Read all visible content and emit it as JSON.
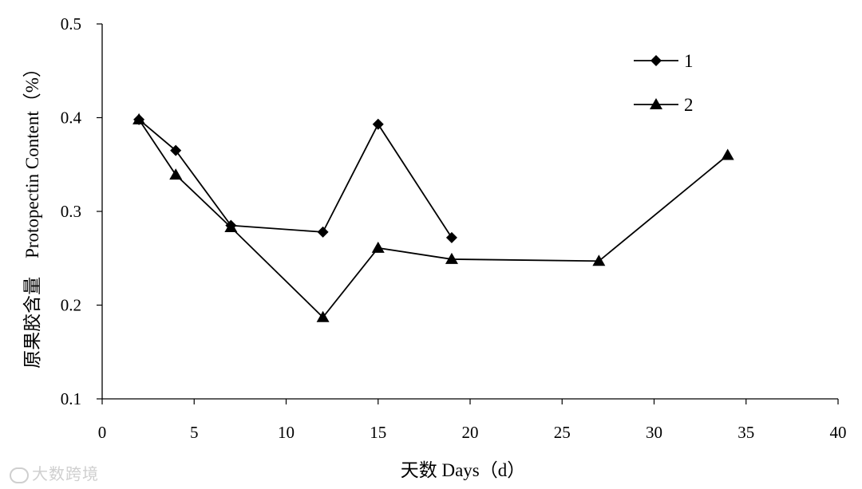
{
  "chart_data": {
    "type": "line",
    "xlabel": "天数 Days（d）",
    "ylabel": "原果胶含量　Protopectin Content（%）",
    "xlim": [
      0,
      40
    ],
    "ylim": [
      0.1,
      0.5
    ],
    "x_ticks": [
      0,
      5,
      10,
      15,
      20,
      25,
      30,
      35,
      40
    ],
    "y_ticks": [
      0.1,
      0.2,
      0.3,
      0.4,
      0.5
    ],
    "grid": false,
    "legend_position": "top-right",
    "series": [
      {
        "name": "1",
        "marker": "diamond",
        "color": "#000000",
        "x": [
          2,
          4,
          7,
          12,
          15,
          19
        ],
        "y": [
          0.398,
          0.365,
          0.285,
          0.278,
          0.393,
          0.272
        ]
      },
      {
        "name": "2",
        "marker": "triangle",
        "color": "#000000",
        "x": [
          2,
          4,
          7,
          12,
          15,
          19,
          27,
          34
        ],
        "y": [
          0.398,
          0.339,
          0.283,
          0.187,
          0.261,
          0.249,
          0.247,
          0.36
        ]
      }
    ]
  },
  "watermark": {
    "text": "大数跨境"
  }
}
